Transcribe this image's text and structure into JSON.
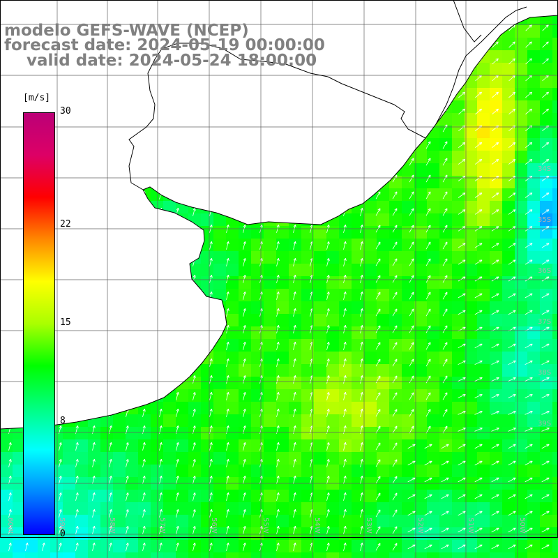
{
  "title": {
    "line1": "modelo GEFS-WAVE (NCEP)",
    "line2": "forecast date: 2024-05-19 00:00:00",
    "line3": "    valid date: 2024-05-24 18:00:00"
  },
  "colorbar": {
    "unit": "[m/s]",
    "ticks": [
      {
        "value": 30,
        "label": "30"
      },
      {
        "value": 22,
        "label": "22"
      },
      {
        "value": 15,
        "label": "15"
      },
      {
        "value": 8,
        "label": "8"
      },
      {
        "value": 0,
        "label": "0"
      }
    ],
    "min": 0,
    "max": 30,
    "colors": [
      "#0000ff",
      "#0088ff",
      "#00ffff",
      "#00ff80",
      "#00ff00",
      "#aaff00",
      "#ffff00",
      "#ff8800",
      "#ff0000",
      "#dd0066",
      "#bb0077"
    ]
  },
  "map": {
    "ocean_colors_legend": {
      "low": "#00ffff",
      "mid": "#00ff00",
      "high": "#ffff00"
    },
    "lat_labels": [
      "34S",
      "35S",
      "36S",
      "37S",
      "38S",
      "39S"
    ],
    "lon_labels": [
      "60W",
      "59W",
      "58W",
      "57W",
      "56W",
      "55W",
      "54W",
      "53W",
      "52W",
      "51W",
      "50W"
    ]
  }
}
